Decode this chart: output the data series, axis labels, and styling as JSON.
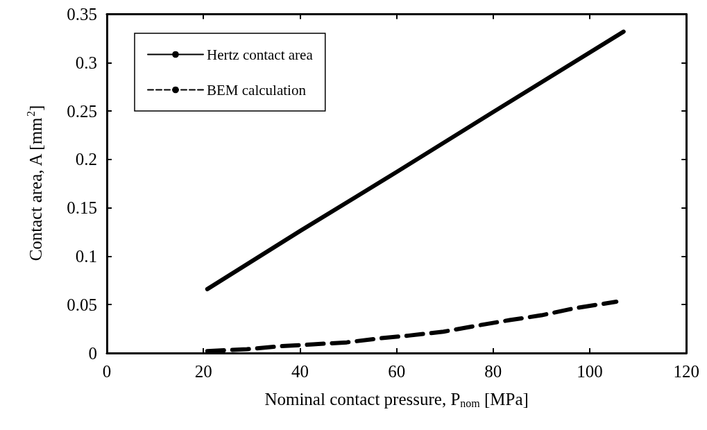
{
  "chart_data": {
    "type": "line",
    "xlabel": "Nominal contact pressure, P$_{nom}$ [MPa]",
    "ylabel": "Contact area, A [mm$^{2}$]",
    "xlim": [
      0,
      120
    ],
    "xticks": [
      0,
      20,
      40,
      60,
      80,
      100,
      120
    ],
    "ylim": [
      0,
      0.35
    ],
    "yticks": [
      0,
      0.05,
      0.1,
      0.15,
      0.2,
      0.25,
      0.3,
      0.35
    ],
    "grid": false,
    "legend": "top left",
    "marker": "none",
    "series": [
      {
        "name": "Hertz contact area",
        "color": "#000000",
        "line_style": "solid",
        "x": [
          20.8,
          40,
          60,
          80,
          107
        ],
        "values": [
          0.066,
          0.126,
          0.187,
          0.249,
          0.332
        ]
      },
      {
        "name": "BEM calculation",
        "color": "#000000",
        "line_style": "dashed",
        "x": [
          20.8,
          29,
          36,
          42.7,
          49.7,
          56.2,
          62.5,
          69.7,
          76.3,
          83.4,
          90,
          96.6,
          105.5
        ],
        "values": [
          0.002,
          0.004,
          0.007,
          0.009,
          0.011,
          0.015,
          0.018,
          0.022,
          0.028,
          0.034,
          0.039,
          0.046,
          0.053
        ]
      }
    ]
  }
}
